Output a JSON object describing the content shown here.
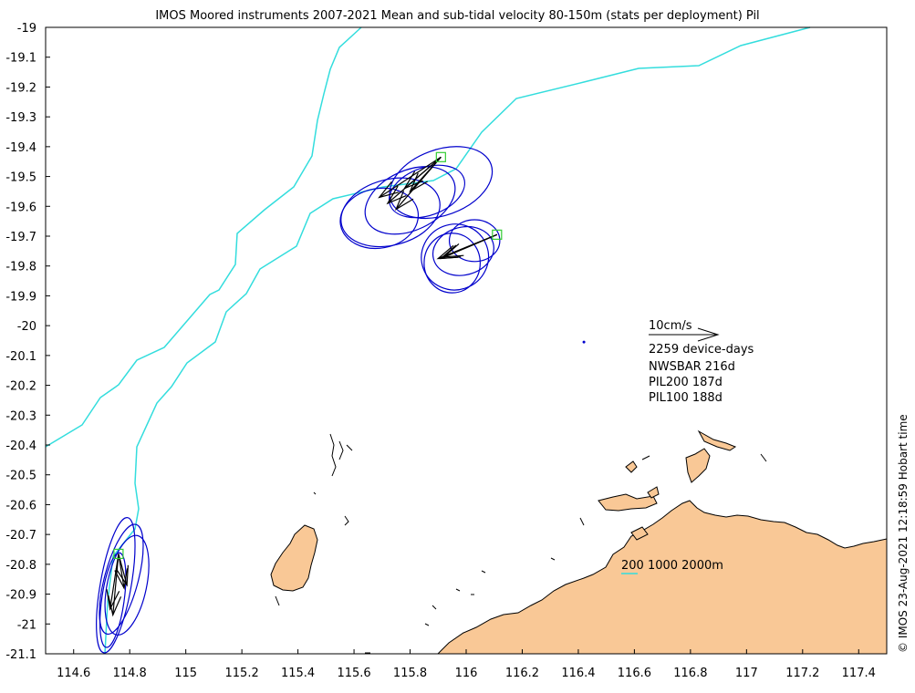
{
  "title": "IMOS Moored instruments 2007-2021 Mean and sub-tidal velocity 80-150m (stats per deployment) Pil",
  "timestamp": "© IMOS 23-Aug-2021 12:18:59 Hobart time",
  "colors": {
    "ellipse": "#0000cc",
    "isobath": "#33dddd",
    "mooring_marker": "#33cc33",
    "land": "#f9c896",
    "coastline": "#000000",
    "arrow": "#000000"
  },
  "chart_data": {
    "type": "map",
    "xlim": [
      114.5,
      117.5
    ],
    "ylim": [
      -21.1,
      -19.0
    ],
    "x_ticks": [
      "114.6",
      "114.8",
      "115",
      "115.2",
      "115.4",
      "115.6",
      "115.8",
      "116",
      "116.2",
      "116.4",
      "116.6",
      "116.8",
      "117",
      "117.2",
      "117.4"
    ],
    "x_tick_values": [
      114.6,
      114.8,
      115.0,
      115.2,
      115.4,
      115.6,
      115.8,
      116.0,
      116.2,
      116.4,
      116.6,
      116.8,
      117.0,
      117.2,
      117.4
    ],
    "y_ticks": [
      "-19",
      "-19.1",
      "-19.2",
      "-19.3",
      "-19.4",
      "-19.5",
      "-19.6",
      "-19.7",
      "-19.8",
      "-19.9",
      "-20",
      "-20.1",
      "-20.2",
      "-20.3",
      "-20.4",
      "-20.5",
      "-20.6",
      "-20.7",
      "-20.8",
      "-20.9",
      "-21",
      "-21.1"
    ],
    "y_tick_values": [
      -19.0,
      -19.1,
      -19.2,
      -19.3,
      -19.4,
      -19.5,
      -19.6,
      -19.7,
      -19.8,
      -19.9,
      -20.0,
      -20.1,
      -20.2,
      -20.3,
      -20.4,
      -20.5,
      -20.6,
      -20.7,
      -20.8,
      -20.9,
      -21.0,
      -21.1
    ],
    "moorings": [
      {
        "lon": 115.91,
        "lat": -19.435,
        "arrows": [
          [
            115.69,
            -19.57
          ],
          [
            115.72,
            -19.59
          ],
          [
            115.75,
            -19.61
          ],
          [
            115.78,
            -19.54
          ],
          [
            115.8,
            -19.55
          ]
        ],
        "ellipses": [
          {
            "lon": 115.91,
            "lat": -19.52,
            "rx": 0.19,
            "ry": 0.11,
            "rot": -20
          },
          {
            "lon": 115.8,
            "lat": -19.58,
            "rx": 0.17,
            "ry": 0.1,
            "rot": -25
          },
          {
            "lon": 115.73,
            "lat": -19.62,
            "rx": 0.18,
            "ry": 0.11,
            "rot": -15
          },
          {
            "lon": 115.69,
            "lat": -19.64,
            "rx": 0.14,
            "ry": 0.1,
            "rot": -10
          },
          {
            "lon": 115.86,
            "lat": -19.55,
            "rx": 0.14,
            "ry": 0.08,
            "rot": -20
          }
        ]
      },
      {
        "lon": 116.11,
        "lat": -19.695,
        "arrows": [
          [
            115.9,
            -19.775
          ],
          [
            115.92,
            -19.77
          ],
          [
            115.91,
            -19.775
          ]
        ],
        "ellipses": [
          {
            "lon": 115.96,
            "lat": -19.77,
            "rx": 0.12,
            "ry": 0.11,
            "rot": -20
          },
          {
            "lon": 115.95,
            "lat": -19.79,
            "rx": 0.1,
            "ry": 0.1,
            "rot": 0
          },
          {
            "lon": 116.03,
            "lat": -19.715,
            "rx": 0.09,
            "ry": 0.07,
            "rot": 0
          },
          {
            "lon": 115.99,
            "lat": -19.75,
            "rx": 0.11,
            "ry": 0.08,
            "rot": -15
          }
        ]
      },
      {
        "lon": 114.76,
        "lat": -20.765,
        "arrows": [
          [
            114.73,
            -20.95
          ],
          [
            114.74,
            -20.97
          ],
          [
            114.78,
            -20.88
          ],
          [
            114.79,
            -20.87
          ]
        ],
        "ellipses": [
          {
            "lon": 114.75,
            "lat": -20.87,
            "rx": 0.055,
            "ry": 0.23,
            "rot": 10
          },
          {
            "lon": 114.77,
            "lat": -20.85,
            "rx": 0.06,
            "ry": 0.19,
            "rot": 15
          },
          {
            "lon": 114.74,
            "lat": -20.92,
            "rx": 0.04,
            "ry": 0.16,
            "rot": 8
          },
          {
            "lon": 114.79,
            "lat": -20.87,
            "rx": 0.07,
            "ry": 0.17,
            "rot": 12
          }
        ]
      }
    ],
    "isolated_point": {
      "lon": 116.42,
      "lat": -20.055
    },
    "legend": {
      "scale_label": "10cm/s",
      "lines": [
        "2259 device-days",
        "NWSBAR 216d",
        "PIL200 187d",
        "PIL100 188d"
      ],
      "isobath_label": "200 1000 2000m"
    }
  }
}
